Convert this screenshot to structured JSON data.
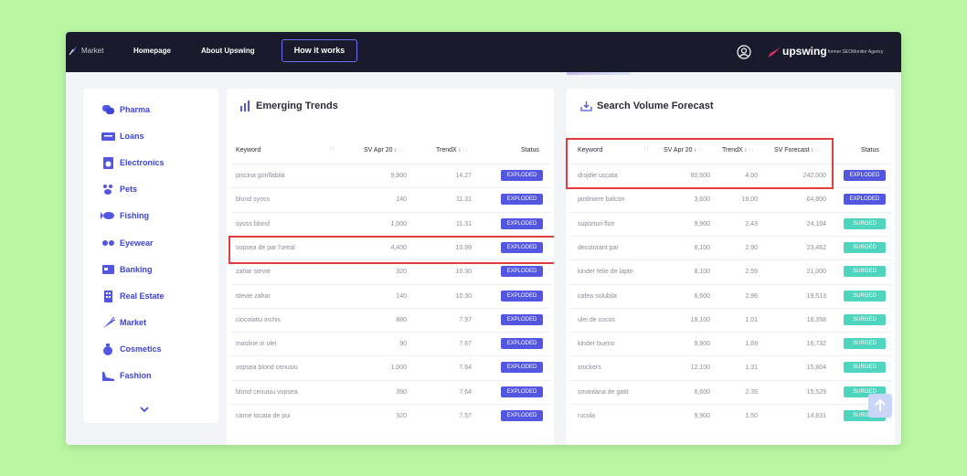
{
  "topbar": {
    "crumb": "Market",
    "nav": [
      "Homepage",
      "About Upswing"
    ],
    "cta": "How it works",
    "brand": "upswing",
    "brand_sub": "| former SEOMonitor Agency"
  },
  "sidebar": {
    "items": [
      {
        "label": "Pharma",
        "icon": "pills-icon"
      },
      {
        "label": "Loans",
        "icon": "money-icon"
      },
      {
        "label": "Electronics",
        "icon": "washing-machine-icon"
      },
      {
        "label": "Pets",
        "icon": "paw-icon"
      },
      {
        "label": "Fishing",
        "icon": "fish-icon"
      },
      {
        "label": "Eyewear",
        "icon": "glasses-icon"
      },
      {
        "label": "Banking",
        "icon": "bank-card-icon"
      },
      {
        "label": "Real Estate",
        "icon": "building-icon"
      },
      {
        "label": "Market",
        "icon": "carrot-icon"
      },
      {
        "label": "Cosmetics",
        "icon": "perfume-icon"
      },
      {
        "label": "Fashion",
        "icon": "shoe-icon"
      }
    ]
  },
  "trends": {
    "title": "Emerging Trends",
    "headers": {
      "keyword": "Keyword",
      "sv": "SV Apr 20",
      "trendx": "TrendX",
      "status": "Status"
    },
    "rows": [
      {
        "keyword": "piscina gonflabila",
        "sv": "9,900",
        "trendx": "14.27",
        "status": "EXPLODED"
      },
      {
        "keyword": "blond syoss",
        "sv": "140",
        "trendx": "11.31",
        "status": "EXPLODED"
      },
      {
        "keyword": "syoss blond",
        "sv": "1,000",
        "trendx": "11.31",
        "status": "EXPLODED"
      },
      {
        "keyword": "vopsea de par l'oreal",
        "sv": "4,400",
        "trendx": "10.99",
        "status": "EXPLODED"
      },
      {
        "keyword": "zahar stevie",
        "sv": "320",
        "trendx": "10.30",
        "status": "EXPLODED"
      },
      {
        "keyword": "stevie zahar",
        "sv": "140",
        "trendx": "10.30",
        "status": "EXPLODED"
      },
      {
        "keyword": "ciocolatiu inchis",
        "sv": "880",
        "trendx": "7.97",
        "status": "EXPLODED"
      },
      {
        "keyword": "masline in ulei",
        "sv": "90",
        "trendx": "7.67",
        "status": "EXPLODED"
      },
      {
        "keyword": "vopsea blond cenusiu",
        "sv": "1,000",
        "trendx": "7.64",
        "status": "EXPLODED"
      },
      {
        "keyword": "blond cenusiu vopsea",
        "sv": "390",
        "trendx": "7.64",
        "status": "EXPLODED"
      },
      {
        "keyword": "carne tocata de pui",
        "sv": "320",
        "trendx": "7.57",
        "status": "EXPLODED"
      }
    ]
  },
  "forecast": {
    "title": "Search Volume Forecast",
    "headers": {
      "keyword": "Keyword",
      "sv": "SV Apr 20",
      "trendx": "TrendX",
      "forecast": "SV Forecast",
      "status": "Status"
    },
    "rows": [
      {
        "keyword": "drojdie uscata",
        "sv": "60,500",
        "trendx": "4.00",
        "forecast": "242,000",
        "status": "EXPLODED"
      },
      {
        "keyword": "jardiniere balcon",
        "sv": "3,600",
        "trendx": "18.00",
        "forecast": "64,800",
        "status": "EXPLODED"
      },
      {
        "keyword": "suporturi flori",
        "sv": "9,900",
        "trendx": "2.43",
        "forecast": "24,104",
        "status": "SURGED"
      },
      {
        "keyword": "decolorant par",
        "sv": "8,100",
        "trendx": "2.90",
        "forecast": "23,462",
        "status": "SURGED"
      },
      {
        "keyword": "kinder felie de lapte",
        "sv": "8,100",
        "trendx": "2.59",
        "forecast": "21,000",
        "status": "SURGED"
      },
      {
        "keyword": "cafea solubila",
        "sv": "6,600",
        "trendx": "2.96",
        "forecast": "19,513",
        "status": "SURGED"
      },
      {
        "keyword": "ulei de cocos",
        "sv": "18,100",
        "trendx": "1.01",
        "forecast": "18,358",
        "status": "SURGED"
      },
      {
        "keyword": "kinder bueno",
        "sv": "9,900",
        "trendx": "1.69",
        "forecast": "16,732",
        "status": "SURGED"
      },
      {
        "keyword": "snickers",
        "sv": "12,100",
        "trendx": "1.31",
        "forecast": "15,804",
        "status": "SURGED"
      },
      {
        "keyword": "smantana de gatit",
        "sv": "6,600",
        "trendx": "2.35",
        "forecast": "15,529",
        "status": "SURGED"
      },
      {
        "keyword": "rucola",
        "sv": "9,900",
        "trendx": "1.50",
        "forecast": "14,831",
        "status": "SURGED"
      }
    ]
  }
}
